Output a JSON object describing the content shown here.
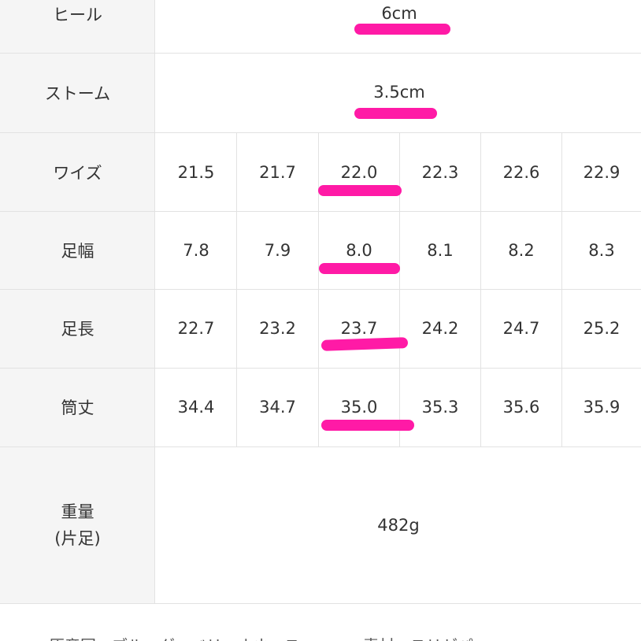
{
  "colors": {
    "highlight": "#ff1aa6",
    "label_bg": "#f5f5f5",
    "border": "#e2e2e2"
  },
  "rows": {
    "heel": {
      "label": "ヒール",
      "value": "6cm"
    },
    "storm": {
      "label": "ストーム",
      "value": "3.5cm"
    },
    "width": {
      "label": "ワイズ",
      "values": [
        "21.5",
        "21.7",
        "22.0",
        "22.3",
        "22.6",
        "22.9"
      ]
    },
    "foot_width": {
      "label": "足幅",
      "values": [
        "7.8",
        "7.9",
        "8.0",
        "8.1",
        "8.2",
        "8.3"
      ]
    },
    "foot_length": {
      "label": "足長",
      "values": [
        "22.7",
        "23.2",
        "23.7",
        "24.2",
        "24.7",
        "25.2"
      ]
    },
    "shaft": {
      "label": "筒丈",
      "values": [
        "34.4",
        "34.7",
        "35.0",
        "35.3",
        "35.6",
        "35.9"
      ]
    },
    "weight": {
      "label_line1": "重量",
      "label_line2": "(片足)",
      "value": "482g"
    }
  },
  "footer": {
    "text": "原産国　ブルーグーベリ・ホネースー　　　素材・スリゼパー"
  }
}
